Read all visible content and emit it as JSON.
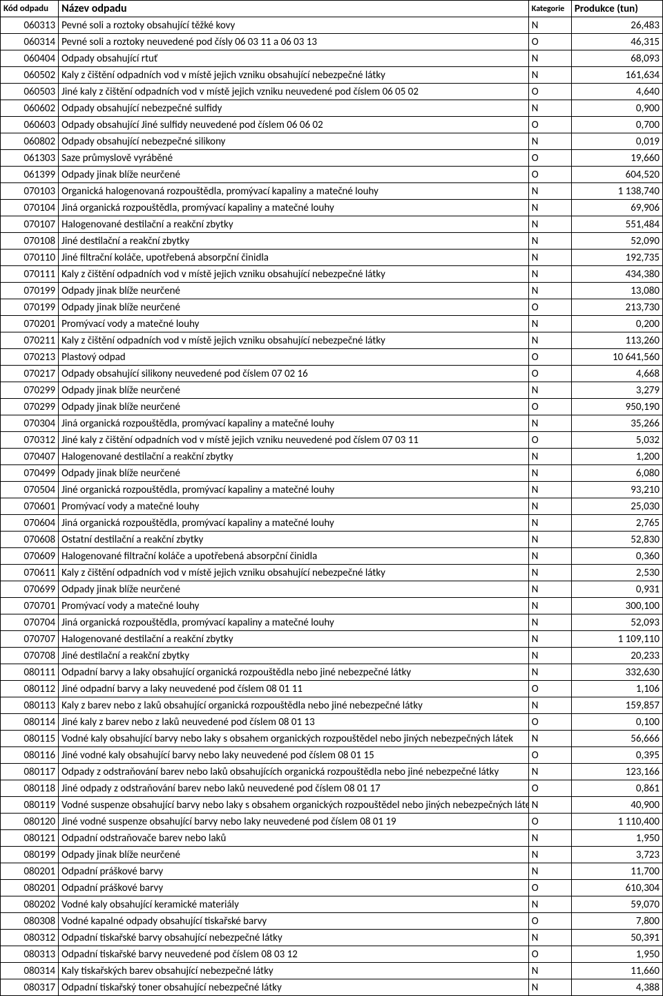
{
  "table": {
    "headers": {
      "code": "Kód odpadu",
      "name": "Název odpadu",
      "category": "Kategorie",
      "production": "Produkce (tun)"
    },
    "rows": [
      {
        "code": "060313",
        "name": "Pevné soli a roztoky obsahující těžké kovy",
        "category": "N",
        "production": "26,483"
      },
      {
        "code": "060314",
        "name": "Pevné soli a roztoky neuvedené pod čísly 06 03 11 a 06 03 13",
        "category": "O",
        "production": "46,315"
      },
      {
        "code": "060404",
        "name": "Odpady obsahující rtuť",
        "category": "N",
        "production": "68,093"
      },
      {
        "code": "060502",
        "name": "Kaly z čištění odpadních vod v místě jejich vzniku obsahující nebezpečné látky",
        "category": "N",
        "production": "161,634"
      },
      {
        "code": "060503",
        "name": "Jiné kaly z čištění odpadních vod v místě jejich vzniku neuvedené pod číslem 06 05 02",
        "category": "O",
        "production": "4,640"
      },
      {
        "code": "060602",
        "name": "Odpady obsahující nebezpečné sulfidy",
        "category": "N",
        "production": "0,900"
      },
      {
        "code": "060603",
        "name": "Odpady obsahující Jiné sulfidy neuvedené pod číslem 06 06 02",
        "category": "O",
        "production": "0,700"
      },
      {
        "code": "060802",
        "name": "Odpady obsahující nebezpečné silikony",
        "category": "N",
        "production": "0,019"
      },
      {
        "code": "061303",
        "name": "Saze průmyslově vyráběné",
        "category": "O",
        "production": "19,660"
      },
      {
        "code": "061399",
        "name": "Odpady jinak blíže neurčené",
        "category": "O",
        "production": "604,520"
      },
      {
        "code": "070103",
        "name": "Organická halogenovaná rozpouštědla, promývací kapaliny a matečné louhy",
        "category": "N",
        "production": "1 138,740"
      },
      {
        "code": "070104",
        "name": "Jiná organická rozpouštědla, promývací kapaliny a matečné louhy",
        "category": "N",
        "production": "69,906"
      },
      {
        "code": "070107",
        "name": "Halogenované destilační a reakční zbytky",
        "category": "N",
        "production": "551,484"
      },
      {
        "code": "070108",
        "name": "Jiné destilační a reakční zbytky",
        "category": "N",
        "production": "52,090"
      },
      {
        "code": "070110",
        "name": "Jiné filtrační koláče, upotřebená absorpční činidla",
        "category": "N",
        "production": "192,735"
      },
      {
        "code": "070111",
        "name": "Kaly z čištění odpadních vod v místě jejich vzniku obsahující nebezpečné látky",
        "category": "N",
        "production": "434,380"
      },
      {
        "code": "070199",
        "name": "Odpady jinak blíže neurčené",
        "category": "N",
        "production": "13,080"
      },
      {
        "code": "070199",
        "name": "Odpady jinak blíže neurčené",
        "category": "O",
        "production": "213,730"
      },
      {
        "code": "070201",
        "name": "Promývací vody a matečné louhy",
        "category": "N",
        "production": "0,200"
      },
      {
        "code": "070211",
        "name": "Kaly z čištění odpadních vod v místě jejich vzniku obsahující nebezpečné látky",
        "category": "N",
        "production": "113,260"
      },
      {
        "code": "070213",
        "name": "Plastový odpad",
        "category": "O",
        "production": "10 641,560"
      },
      {
        "code": "070217",
        "name": "Odpady obsahující silikony neuvedené pod číslem 07 02 16",
        "category": "O",
        "production": "4,668"
      },
      {
        "code": "070299",
        "name": "Odpady jinak blíže neurčené",
        "category": "N",
        "production": "3,279"
      },
      {
        "code": "070299",
        "name": "Odpady jinak blíže neurčené",
        "category": "O",
        "production": "950,190"
      },
      {
        "code": "070304",
        "name": "Jiná organická rozpouštědla, promývací kapaliny a matečné louhy",
        "category": "N",
        "production": "35,266"
      },
      {
        "code": "070312",
        "name": "Jiné kaly z čištění odpadních vod v místě jejich vzniku neuvedené pod číslem 07 03 11",
        "category": "O",
        "production": "5,032"
      },
      {
        "code": "070407",
        "name": "Halogenované destilační a reakční zbytky",
        "category": "N",
        "production": "1,200"
      },
      {
        "code": "070499",
        "name": "Odpady jinak blíže neurčené",
        "category": "N",
        "production": "6,080"
      },
      {
        "code": "070504",
        "name": "Jiné organická rozpouštědla, promývací kapaliny a matečné louhy",
        "category": "N",
        "production": "93,210"
      },
      {
        "code": "070601",
        "name": "Promývací vody a matečné louhy",
        "category": "N",
        "production": "25,030"
      },
      {
        "code": "070604",
        "name": "Jiná organická rozpouštědla, promývací kapaliny a matečné louhy",
        "category": "N",
        "production": "2,765"
      },
      {
        "code": "070608",
        "name": "Ostatní destilační a reakční zbytky",
        "category": "N",
        "production": "52,830"
      },
      {
        "code": "070609",
        "name": "Halogenované filtrační koláče a upotřebená absorpční činidla",
        "category": "N",
        "production": "0,360"
      },
      {
        "code": "070611",
        "name": "Kaly z čištění odpadních vod v místě jejich vzniku obsahující nebezpečné látky",
        "category": "N",
        "production": "2,530"
      },
      {
        "code": "070699",
        "name": "Odpady jinak blíže neurčené",
        "category": "N",
        "production": "0,931"
      },
      {
        "code": "070701",
        "name": "Promývací vody a matečné louhy",
        "category": "N",
        "production": "300,100"
      },
      {
        "code": "070704",
        "name": "Jiná organická rozpouštědla, promývací kapaliny a matečné louhy",
        "category": "N",
        "production": "52,093"
      },
      {
        "code": "070707",
        "name": "Halogenované destilační a reakční zbytky",
        "category": "N",
        "production": "1 109,110"
      },
      {
        "code": "070708",
        "name": "Jiné destilační a reakční zbytky",
        "category": "N",
        "production": "20,233"
      },
      {
        "code": "080111",
        "name": "Odpadní barvy a laky obsahující organická rozpouštědla nebo jiné nebezpečné látky",
        "category": "N",
        "production": "332,630"
      },
      {
        "code": "080112",
        "name": "Jiné odpadní barvy a laky neuvedené pod číslem 08 01 11",
        "category": "O",
        "production": "1,106"
      },
      {
        "code": "080113",
        "name": "Kaly z barev nebo z laků obsahující organická rozpouštědla nebo jiné nebezpečné látky",
        "category": "N",
        "production": "159,857"
      },
      {
        "code": "080114",
        "name": "Jiné kaly z barev nebo z laků neuvedené pod číslem 08 01 13",
        "category": "O",
        "production": "0,100"
      },
      {
        "code": "080115",
        "name": "Vodné kaly obsahující barvy nebo laky s obsahem organických rozpouštědel nebo jiných nebezpečných látek",
        "category": "N",
        "production": "56,666",
        "small": true
      },
      {
        "code": "080116",
        "name": "Jiné vodné kaly obsahující barvy nebo laky neuvedené pod číslem 08 01 15",
        "category": "O",
        "production": "0,395"
      },
      {
        "code": "080117",
        "name": "Odpady z odstraňování barev nebo laků obsahujících organická rozpouštědla nebo jiné nebezpečné látky",
        "category": "N",
        "production": "123,166",
        "small": true
      },
      {
        "code": "080118",
        "name": "Jiné odpady z odstraňování barev nebo laků neuvedené pod číslem 08 01 17",
        "category": "O",
        "production": "0,861"
      },
      {
        "code": "080119",
        "name": "Vodné suspenze obsahující barvy nebo laky s obsahem organických rozpouštědel nebo jiných nebezpečných látek",
        "category": "N",
        "production": "40,900",
        "small": true
      },
      {
        "code": "080120",
        "name": "Jiné vodné suspenze obsahující barvy nebo laky neuvedené pod číslem 08 01 19",
        "category": "O",
        "production": "1 110,400"
      },
      {
        "code": "080121",
        "name": "Odpadní odstraňovače barev nebo laků",
        "category": "N",
        "production": "1,950"
      },
      {
        "code": "080199",
        "name": "Odpady jinak blíže neurčené",
        "category": "N",
        "production": "3,723"
      },
      {
        "code": "080201",
        "name": "Odpadní práškové barvy",
        "category": "N",
        "production": "11,700"
      },
      {
        "code": "080201",
        "name": "Odpadní práškové barvy",
        "category": "O",
        "production": "610,304"
      },
      {
        "code": "080202",
        "name": "Vodné kaly obsahující keramické materiály",
        "category": "N",
        "production": "59,070"
      },
      {
        "code": "080308",
        "name": "Vodné kapalné odpady obsahující tiskařské barvy",
        "category": "O",
        "production": "7,800"
      },
      {
        "code": "080312",
        "name": "Odpadní tiskařské barvy obsahující nebezpečné látky",
        "category": "N",
        "production": "50,391"
      },
      {
        "code": "080313",
        "name": "Odpadní tiskařské barvy neuvedené pod číslem 08 03 12",
        "category": "O",
        "production": "1,950"
      },
      {
        "code": "080314",
        "name": "Kaly tiskařských barev obsahující nebezpečné látky",
        "category": "N",
        "production": "11,660"
      },
      {
        "code": "080317",
        "name": "Odpadní tiskařský toner obsahující nebezpečné látky",
        "category": "N",
        "production": "4,388"
      }
    ]
  }
}
